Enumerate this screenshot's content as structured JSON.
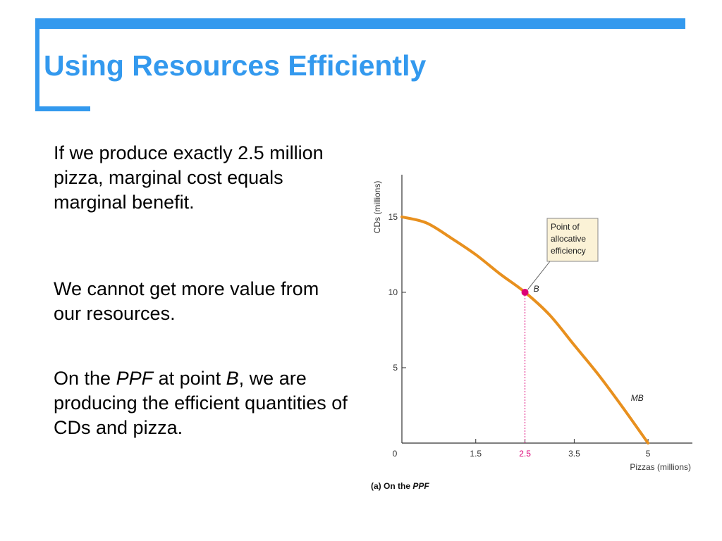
{
  "slide": {
    "title": "Using Resources Efficiently",
    "accent_color": "#3399ee"
  },
  "bullets": {
    "b1": "If we produce exactly 2.5 million pizza, marginal cost equals marginal benefit.",
    "b2": "We cannot get more value from our resources.",
    "b3_pre": "On the ",
    "b3_ppf": "PPF",
    "b3_mid": " at point ",
    "b3_b": "B",
    "b3_post": ", we are producing the efficient quantities of CDs and pizza."
  },
  "chart_data": {
    "type": "line",
    "caption_prefix": "(a) On the ",
    "caption_emph": "PPF",
    "xlabel": "Pizzas (millions)",
    "ylabel": "CDs (millions)",
    "xlim": [
      0,
      5.9
    ],
    "ylim": [
      0,
      17.8
    ],
    "x_ticks": [
      "0",
      "1.5",
      "2.5",
      "3.5",
      "5"
    ],
    "x_tick_values": [
      0,
      1.5,
      2.5,
      3.5,
      5
    ],
    "y_ticks": [
      "5",
      "10",
      "15"
    ],
    "y_tick_values": [
      5,
      10,
      15
    ],
    "series": [
      {
        "name": "MB",
        "color": "#e8901e",
        "x": [
          0,
          0.5,
          1.0,
          1.5,
          2.0,
          2.5,
          3.0,
          3.5,
          4.0,
          4.5,
          5.0
        ],
        "y": [
          15.0,
          14.6,
          13.6,
          12.5,
          11.2,
          10.0,
          8.5,
          6.5,
          4.5,
          2.3,
          0
        ]
      }
    ],
    "point": {
      "label": "B",
      "x": 2.5,
      "y": 10,
      "color": "#dd0077"
    },
    "annotation": [
      "Point of",
      "allocative",
      "efficiency"
    ],
    "highlight_tick_color": "#dd0077"
  }
}
